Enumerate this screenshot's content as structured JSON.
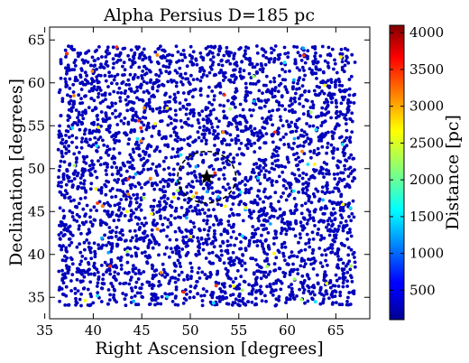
{
  "chart_data": {
    "type": "scatter",
    "title": "Alpha Persius  D=185 pc",
    "xlabel": "Right Ascension [degrees]",
    "ylabel": "Declination [degrees]",
    "xlim": [
      35.5,
      68.5
    ],
    "ylim": [
      32.5,
      66.5
    ],
    "xticks": [
      35,
      40,
      45,
      50,
      55,
      60,
      65
    ],
    "yticks": [
      35,
      40,
      45,
      50,
      55,
      60,
      65
    ],
    "grid": false,
    "colorbar": {
      "label": "Distance [pc]",
      "colormap": "jet",
      "range": [
        100,
        4100
      ],
      "ticks": [
        500,
        1000,
        1500,
        2000,
        2500,
        3000,
        3500,
        4000
      ]
    },
    "stars": {
      "ra_range": [
        36.4,
        67.0
      ],
      "dec_range": [
        34.0,
        64.3
      ],
      "dominant_distance_pc": 150,
      "marker_color": "#0000bb",
      "highlight_colors": [
        "#00e5ff",
        "#ffff00",
        "#ff3000",
        "#a0ff60",
        "#00aaff",
        "#ff8000"
      ]
    },
    "cluster_center": {
      "ra": 51.7,
      "dec": 49.0,
      "marker": "star"
    },
    "cluster_radius_deg": 3.0
  }
}
